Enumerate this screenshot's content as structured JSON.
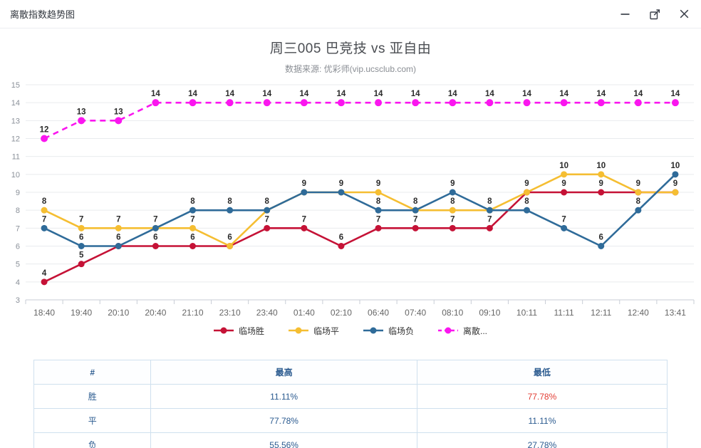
{
  "window": {
    "title": "离散指数趋势图",
    "controls": [
      "minimize",
      "maximize",
      "close"
    ]
  },
  "chart": {
    "title": "周三005 巴竞技 vs 亚自由",
    "subtitle": "数据来源: 优彩师(vip.ucsclub.com)"
  },
  "chart_data": {
    "type": "line",
    "categories": [
      "18:40",
      "19:40",
      "20:10",
      "20:40",
      "21:10",
      "23:10",
      "23:40",
      "01:40",
      "02:10",
      "06:40",
      "07:40",
      "08:10",
      "09:10",
      "10:11",
      "11:11",
      "12:11",
      "12:40",
      "13:41"
    ],
    "series": [
      {
        "name": "临场胜",
        "color": "#c51236",
        "dashed": false,
        "values": [
          4,
          5,
          6,
          6,
          6,
          6,
          7,
          7,
          6,
          7,
          7,
          7,
          7,
          9,
          9,
          9,
          9,
          9
        ]
      },
      {
        "name": "临场平",
        "color": "#f5be32",
        "dashed": false,
        "values": [
          8,
          7,
          7,
          7,
          7,
          6,
          8,
          9,
          9,
          9,
          8,
          8,
          8,
          9,
          10,
          10,
          9,
          9
        ]
      },
      {
        "name": "临场负",
        "color": "#2f6b99",
        "dashed": false,
        "values": [
          7,
          6,
          6,
          7,
          8,
          8,
          8,
          9,
          9,
          8,
          8,
          9,
          8,
          8,
          7,
          6,
          8,
          10
        ]
      },
      {
        "name": "离散...",
        "color": "#fa16ef",
        "dashed": true,
        "values": [
          12,
          13,
          13,
          14,
          14,
          14,
          14,
          14,
          14,
          14,
          14,
          14,
          14,
          14,
          14,
          14,
          14,
          14
        ]
      }
    ],
    "ylim": [
      3,
      15
    ],
    "ytick_step": 1,
    "grid": true,
    "legend_position": "bottom",
    "point_labels": true,
    "title": "周三005 巴竞技 vs 亚自由",
    "xlabel": "",
    "ylabel": ""
  },
  "table": {
    "headers": [
      "#",
      "最高",
      "最低"
    ],
    "text_color": "#2a5a8f",
    "border_color": "#cfe0ee",
    "rows": [
      {
        "label": "胜",
        "high": "11.11%",
        "high_color": "#2a5a8f",
        "low": "77.78%",
        "low_color": "#e23c33"
      },
      {
        "label": "平",
        "high": "77.78%",
        "high_color": "#2a5a8f",
        "low": "11.11%",
        "low_color": "#2a5a8f"
      },
      {
        "label": "负",
        "high": "55.56%",
        "high_color": "#2a5a8f",
        "low": "27.78%",
        "low_color": "#2a5a8f"
      }
    ]
  }
}
